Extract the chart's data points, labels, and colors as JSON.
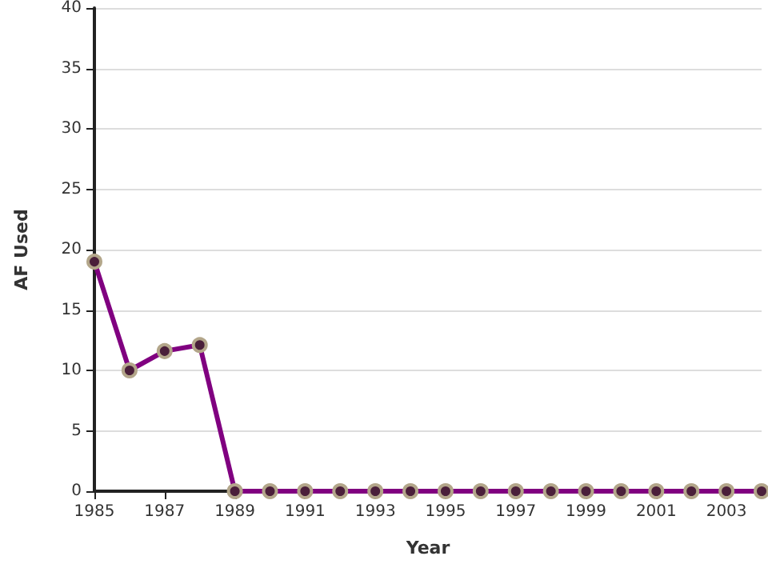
{
  "chart_data": {
    "type": "line",
    "xlabel": "Year",
    "ylabel": "AF Used",
    "x": [
      1985,
      1986,
      1987,
      1988,
      1989,
      1990,
      1991,
      1992,
      1993,
      1994,
      1995,
      1996,
      1997,
      1998,
      1999,
      2000,
      2001,
      2002,
      2003,
      2004
    ],
    "series": [
      {
        "color": "#800080",
        "values": [
          19,
          10,
          11.6,
          12.1,
          0,
          0,
          0,
          0,
          0,
          0,
          0,
          0,
          0,
          0,
          0,
          0,
          0,
          0,
          0,
          0
        ]
      }
    ],
    "xlim": [
      1985,
      2004
    ],
    "xticks": [
      1985,
      1987,
      1989,
      1991,
      1993,
      1995,
      1997,
      1999,
      2001,
      2003
    ],
    "ylim": [
      0,
      40
    ],
    "yticks": [
      0,
      5,
      10,
      15,
      20,
      25,
      30,
      35,
      40
    ],
    "grid": "y",
    "marker": "circle",
    "line_style": "solid"
  }
}
